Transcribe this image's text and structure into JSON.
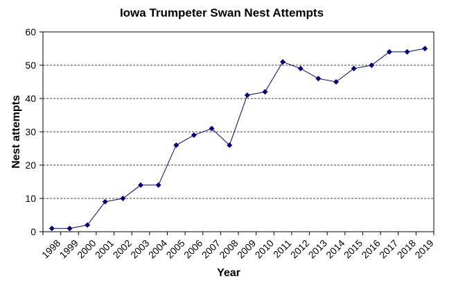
{
  "chart_data": {
    "type": "line",
    "title": "Iowa Trumpeter Swan Nest Attempts",
    "x_label": "Year",
    "y_label": "Nest attempts",
    "categories": [
      "1998",
      "1999",
      "2000",
      "2001",
      "2002",
      "2003",
      "2004",
      "2005",
      "2006",
      "2007",
      "2008",
      "2009",
      "2010",
      "2011",
      "2012",
      "2013",
      "2014",
      "2015",
      "2016",
      "2017",
      "2018",
      "2019"
    ],
    "values": [
      1,
      1,
      2,
      9,
      10,
      14,
      14,
      26,
      29,
      31,
      26,
      41,
      42,
      51,
      49,
      46,
      45,
      49,
      50,
      54,
      54,
      55
    ],
    "color": "#000080",
    "ylim": [
      0,
      60
    ],
    "yticks": [
      0,
      10,
      20,
      30,
      40,
      50,
      60
    ],
    "grid": true
  }
}
